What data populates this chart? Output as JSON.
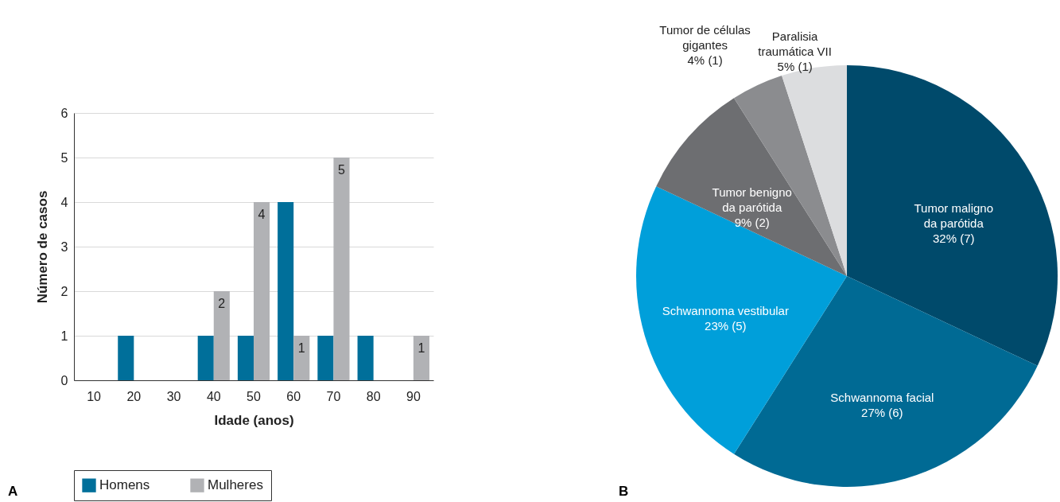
{
  "chart_data": [
    {
      "type": "bar",
      "categories": [
        "10",
        "20",
        "30",
        "40",
        "50",
        "60",
        "70",
        "80",
        "90"
      ],
      "xlabel": "Idade (anos)",
      "ylabel": "Número de casos",
      "ylim": [
        0,
        6
      ],
      "yticks": [
        0,
        1,
        2,
        3,
        4,
        5,
        6
      ],
      "grid": "y",
      "legend": "bottom",
      "annotations": [
        "A"
      ],
      "series": [
        {
          "name": "Homens",
          "color": "#006f9a",
          "values": [
            0,
            1,
            0,
            1,
            1,
            4,
            1,
            1,
            0
          ]
        },
        {
          "name": "Mulheres",
          "color": "#b1b2b5",
          "values": [
            0,
            0,
            0,
            2,
            4,
            1,
            5,
            0,
            1
          ],
          "value_labels": [
            null,
            null,
            null,
            "2",
            "4",
            "1",
            "5",
            null,
            "1"
          ]
        }
      ]
    },
    {
      "type": "pie",
      "categories": [
        "Tumor maligno\nda parótida",
        "Schwannoma facial",
        "Schwannoma vestibular",
        "Tumor benigno\nda parótida",
        "Tumor de células\ngigantes",
        "Paralisia\ntraumática VII"
      ],
      "values": [
        32,
        27,
        23,
        9,
        4,
        5
      ],
      "value_labels": [
        "32% (7)",
        "27% (6)",
        "23% (5)",
        "9% (2)",
        "4% (1)",
        "5% (1)"
      ],
      "colors": [
        "#004a6b",
        "#006a94",
        "#009fda",
        "#6d6e71",
        "#8b8c8f",
        "#dcdddf"
      ],
      "legend": false,
      "annotations": [
        "B"
      ]
    }
  ]
}
